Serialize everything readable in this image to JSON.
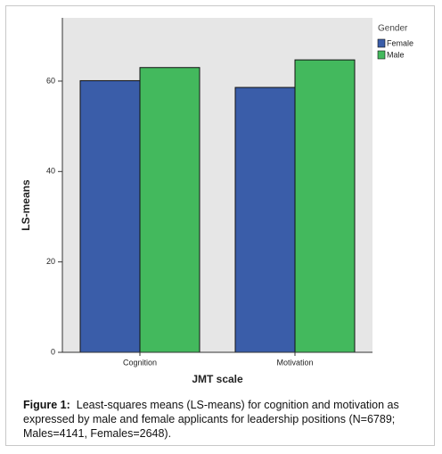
{
  "chart_data": {
    "type": "bar",
    "x_label": "JMT scale",
    "y_label": "LS-means",
    "categories": [
      "Cognition",
      "Motivation"
    ],
    "series": [
      {
        "name": "Female",
        "color": "#3a5da9",
        "values": [
          60.1,
          58.6
        ]
      },
      {
        "name": "Male",
        "color": "#43b95d",
        "values": [
          63.0,
          64.7
        ]
      }
    ],
    "legend_title": "Gender",
    "legend_position": "right",
    "ylim": [
      0,
      74
    ],
    "yticks": [
      0,
      20,
      40,
      60
    ]
  },
  "caption": {
    "label": "Figure 1:",
    "text": "Least-squares means (LS-means) for cognition and motivation as expressed by male and female applicants for leadership positions (N=6789; Males=4141, Females=2648)."
  }
}
